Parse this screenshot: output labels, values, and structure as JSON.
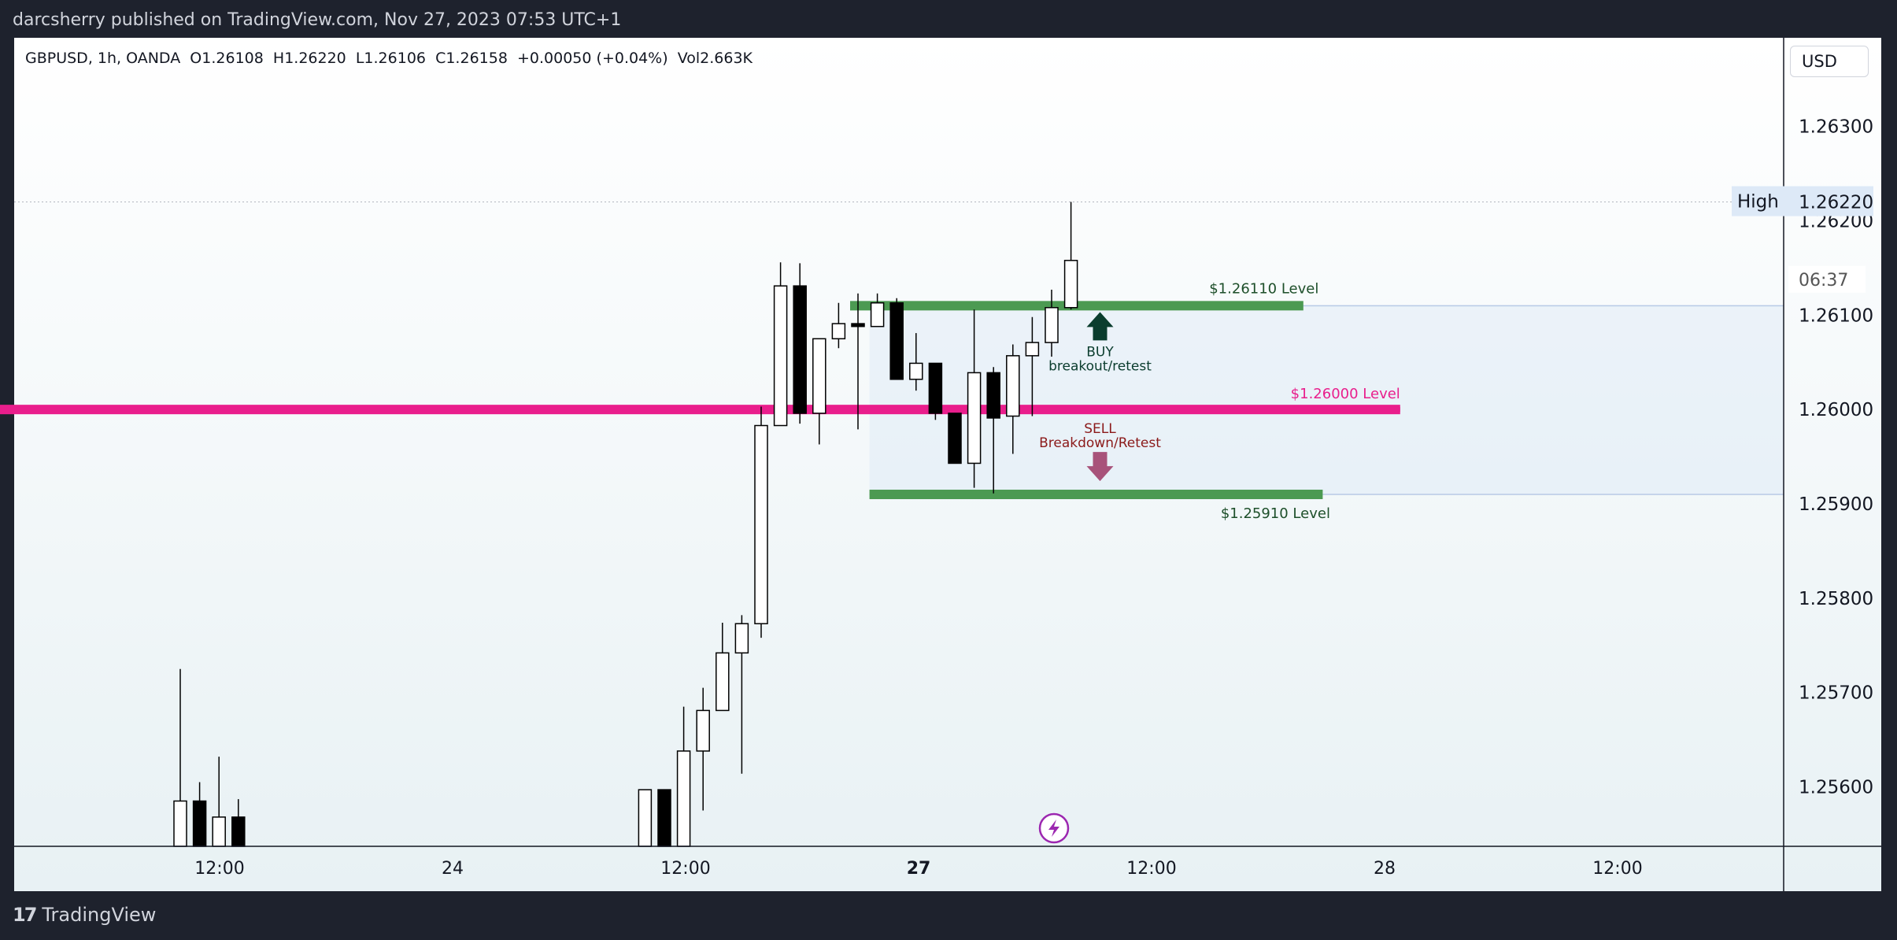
{
  "header": {
    "published": "darcsherry published on TradingView.com, Nov 27, 2023 07:53 UTC+1"
  },
  "legend": {
    "text": "GBPUSD, 1h, OANDA  O1.26108  H1.26220  L1.26106  C1.26158  +0.00050 (+0.04%)  Vol2.663K"
  },
  "currency_button": "USD",
  "footer": {
    "brand": "TradingView",
    "brand_mark": "17"
  },
  "colors": {
    "up": "#ffffff",
    "down": "#000000",
    "level_green": "#4c9a52",
    "level_pink": "#e91e8c",
    "buy": "#0b3d2e",
    "sell": "#8b1a1a",
    "sell_arrow": "#a8527a",
    "background_frame": "#1e222d"
  },
  "chart_data": {
    "type": "candlestick",
    "symbol": "GBPUSD",
    "timeframe": "1h",
    "broker": "OANDA",
    "y_axis": {
      "ticks": [
        "1.26300",
        "1.26200",
        "1.26100",
        "1.26000",
        "1.25900",
        "1.25800",
        "1.25700",
        "1.25600"
      ],
      "ylim": [
        1.25537,
        1.26394
      ]
    },
    "x_axis": {
      "ticks": [
        {
          "label": "12:00",
          "bold": false
        },
        {
          "label": "24",
          "bold": false
        },
        {
          "label": "12:00",
          "bold": false
        },
        {
          "label": "27",
          "bold": true
        },
        {
          "label": "12:00",
          "bold": false
        },
        {
          "label": "28",
          "bold": false
        },
        {
          "label": "12:00",
          "bold": false
        }
      ]
    },
    "candles": [
      {
        "i": 0,
        "open": 1.2551,
        "high": 1.25725,
        "low": 1.2551,
        "close": 1.25585
      },
      {
        "i": 1,
        "open": 1.25585,
        "high": 1.25605,
        "low": 1.2551,
        "close": 1.25535
      },
      {
        "i": 2,
        "open": 1.2551,
        "high": 1.25632,
        "low": 1.2551,
        "close": 1.25568
      },
      {
        "i": 3,
        "open": 1.25568,
        "high": 1.25587,
        "low": 1.2551,
        "close": 1.25535
      },
      {
        "i": 24,
        "open": 1.2551,
        "high": 1.25597,
        "low": 1.2551,
        "close": 1.25597
      },
      {
        "i": 25,
        "open": 1.25597,
        "high": 1.25597,
        "low": 1.2551,
        "close": 1.2553
      },
      {
        "i": 26,
        "open": 1.2553,
        "high": 1.25685,
        "low": 1.2551,
        "close": 1.25638
      },
      {
        "i": 27,
        "open": 1.25638,
        "high": 1.25705,
        "low": 1.25575,
        "close": 1.25681
      },
      {
        "i": 28,
        "open": 1.25681,
        "high": 1.25774,
        "low": 1.25681,
        "close": 1.25742
      },
      {
        "i": 29,
        "open": 1.25742,
        "high": 1.25782,
        "low": 1.25614,
        "close": 1.25773
      },
      {
        "i": 30,
        "open": 1.25773,
        "high": 1.26003,
        "low": 1.25758,
        "close": 1.25983
      },
      {
        "i": 31,
        "open": 1.25983,
        "high": 1.26156,
        "low": 1.25983,
        "close": 1.26131
      },
      {
        "i": 32,
        "open": 1.26131,
        "high": 1.26155,
        "low": 1.25985,
        "close": 1.25996
      },
      {
        "i": 33,
        "open": 1.25996,
        "high": 1.26074,
        "low": 1.25963,
        "close": 1.26075
      },
      {
        "i": 34,
        "open": 1.26075,
        "high": 1.26113,
        "low": 1.26065,
        "close": 1.26091
      },
      {
        "i": 35,
        "open": 1.26091,
        "high": 1.26123,
        "low": 1.25979,
        "close": 1.26088
      },
      {
        "i": 36,
        "open": 1.26088,
        "high": 1.26123,
        "low": 1.26088,
        "close": 1.26113
      },
      {
        "i": 37,
        "open": 1.26113,
        "high": 1.26118,
        "low": 1.26032,
        "close": 1.26032
      },
      {
        "i": 38,
        "open": 1.26032,
        "high": 1.26081,
        "low": 1.2602,
        "close": 1.26049
      },
      {
        "i": 39,
        "open": 1.26049,
        "high": 1.26049,
        "low": 1.25989,
        "close": 1.25996
      },
      {
        "i": 40,
        "open": 1.25996,
        "high": 1.25996,
        "low": 1.25943,
        "close": 1.25943
      },
      {
        "i": 41,
        "open": 1.25943,
        "high": 1.26106,
        "low": 1.25917,
        "close": 1.26039
      },
      {
        "i": 42,
        "open": 1.26039,
        "high": 1.26045,
        "low": 1.25911,
        "close": 1.25991
      },
      {
        "i": 43,
        "open": 1.25993,
        "high": 1.26069,
        "low": 1.25953,
        "close": 1.26057
      },
      {
        "i": 44,
        "open": 1.26057,
        "high": 1.26098,
        "low": 1.25993,
        "close": 1.26071
      },
      {
        "i": 45,
        "open": 1.26071,
        "high": 1.26127,
        "low": 1.26056,
        "close": 1.26108
      },
      {
        "i": 46,
        "open": 1.26108,
        "high": 1.2622,
        "low": 1.26106,
        "close": 1.26158
      }
    ],
    "levels": [
      {
        "price": 1.2611,
        "label": "$1.26110 Level",
        "color": "#4c9a52",
        "from_i": 35,
        "to_i": 58
      },
      {
        "price": 1.26,
        "label": "$1.26000 Level",
        "color": "#e91e8c",
        "from_i": -16,
        "to_i": 63
      },
      {
        "price": 1.2591,
        "label": "$1.25910 Level",
        "color": "#4c9a52",
        "from_i": 36,
        "to_i": 59
      }
    ],
    "shaded_zone": {
      "top": 1.2611,
      "bottom": 1.2591,
      "from_i": 36
    },
    "annotations": [
      {
        "type": "arrow-up",
        "label1": "BUY",
        "label2": "breakout/retest",
        "color": "#0b3d2e"
      },
      {
        "type": "arrow-down",
        "label1": "SELL",
        "label2": "Breakdown/Retest",
        "color": "#8b1a1a"
      }
    ],
    "high_marker": {
      "label": "High",
      "value": "1.26220",
      "price": 1.2622
    },
    "countdown": "06:37",
    "grid": false
  }
}
